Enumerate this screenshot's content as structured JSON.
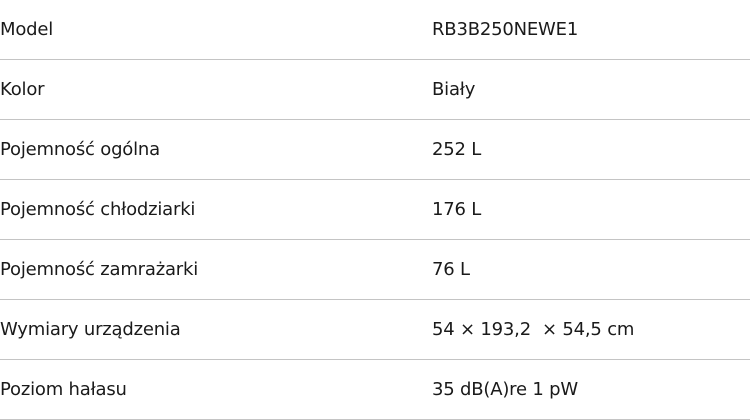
{
  "specs": [
    {
      "label": "Model",
      "value": "RB3B250NEWE1"
    },
    {
      "label": "Kolor",
      "value": "Biały"
    },
    {
      "label": "Pojemność ogólna",
      "value": "252 L"
    },
    {
      "label": "Pojemność chłodziarki",
      "value": "176 L"
    },
    {
      "label": "Pojemność zamrażarki",
      "value": "76 L"
    },
    {
      "label": "Wymiary urządzenia",
      "value": "54 × 193,2  × 54,5 cm"
    },
    {
      "label": "Poziom hałasu",
      "value": "35 dB(A)re 1 pW"
    }
  ]
}
